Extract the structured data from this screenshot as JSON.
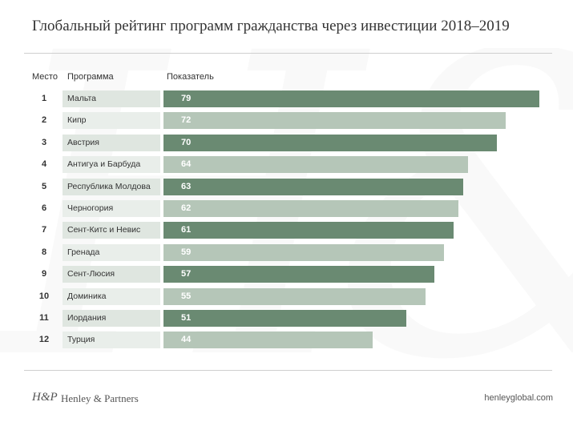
{
  "title": "Глобальный рейтинг программ гражданства через инвестиции 2018–2019",
  "columns": {
    "rank": "Место",
    "program": "Программа",
    "score": "Показатель"
  },
  "colors": {
    "dark": "#6a8a72",
    "light": "#b5c6b8",
    "dark_name": "#dfe6e0",
    "light_name": "#e9eeea"
  },
  "chart_data": {
    "type": "bar",
    "orientation": "horizontal",
    "title": "Глобальный рейтинг программ гражданства через инвестиции 2018–2019",
    "ranks": [
      1,
      2,
      3,
      4,
      5,
      6,
      7,
      8,
      9,
      10,
      11,
      12
    ],
    "categories": [
      "Мальта",
      "Кипр",
      "Австрия",
      "Антигуа и Барбуда",
      "Республика Молдова",
      "Черногория",
      "Сент-Китс и Невис",
      "Гренада",
      "Сент-Люсия",
      "Доминика",
      "Иордания",
      "Турция"
    ],
    "values": [
      79,
      72,
      70,
      64,
      63,
      62,
      61,
      59,
      57,
      55,
      51,
      44
    ],
    "xlim": [
      0,
      79
    ]
  },
  "footer": {
    "logo": "H&P",
    "brand": "Henley & Partners",
    "url": "henleyglobal.com"
  }
}
